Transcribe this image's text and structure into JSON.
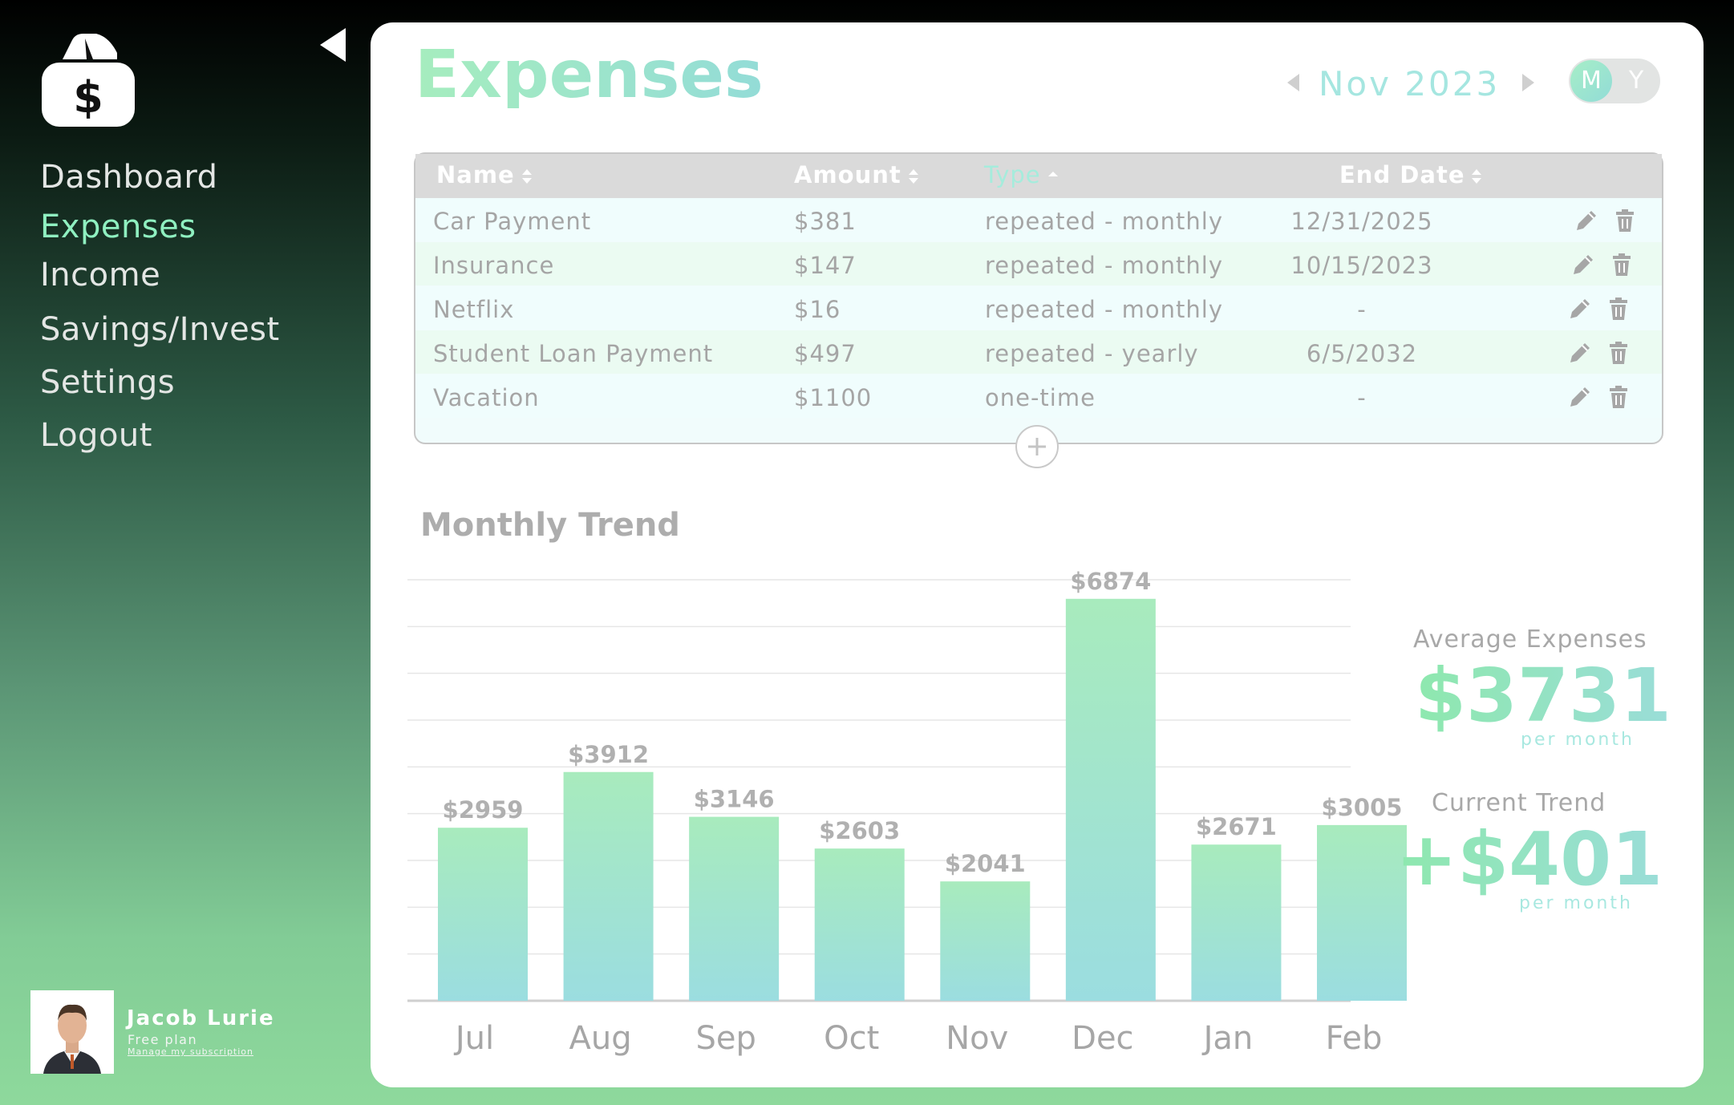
{
  "sidebar": {
    "nav": [
      {
        "label": "Dashboard",
        "active": false
      },
      {
        "label": "Expenses",
        "active": true
      },
      {
        "label": "Income",
        "active": false
      },
      {
        "label": "Savings/Invest",
        "active": false
      },
      {
        "label": "Settings",
        "active": false
      },
      {
        "label": "Logout",
        "active": false
      }
    ],
    "user": {
      "name": "Jacob Lurie",
      "plan": "Free plan",
      "manage_link": "Manage my subscription"
    }
  },
  "header": {
    "title": "Expenses",
    "period": "Nov 2023",
    "toggle": {
      "month": "M",
      "year": "Y",
      "selected": "M"
    }
  },
  "table": {
    "columns": [
      "Name",
      "Amount",
      "Type",
      "End Date"
    ],
    "sorted_column": "Type",
    "rows": [
      {
        "name": "Car Payment",
        "amount": "$381",
        "type": "repeated - monthly",
        "end_date": "12/31/2025"
      },
      {
        "name": "Insurance",
        "amount": "$147",
        "type": "repeated - monthly",
        "end_date": "10/15/2023"
      },
      {
        "name": "Netflix",
        "amount": "$16",
        "type": "repeated - monthly",
        "end_date": "-"
      },
      {
        "name": "Student Loan Payment",
        "amount": "$497",
        "type": "repeated - yearly",
        "end_date": "6/5/2032"
      },
      {
        "name": "Vacation",
        "amount": "$1100",
        "type": "one-time",
        "end_date": "-"
      }
    ]
  },
  "chart_data": {
    "type": "bar",
    "title": "Monthly Trend",
    "categories": [
      "Jul",
      "Aug",
      "Sep",
      "Oct",
      "Nov",
      "Dec",
      "Jan",
      "Feb"
    ],
    "values": [
      2959,
      3912,
      3146,
      2603,
      2041,
      6874,
      2671,
      3005
    ],
    "value_labels": [
      "$2959",
      "$3912",
      "$3146",
      "$2603",
      "$2041",
      "$6874",
      "$2671",
      "$3005"
    ],
    "ylim": [
      0,
      7200
    ],
    "grid": true,
    "colors": {
      "bar_top": "#a8ebbd",
      "bar_bottom": "#9bdde0"
    }
  },
  "stats": {
    "average_label": "Average Expenses",
    "average_value": "$3731",
    "average_unit": "per month",
    "trend_label": "Current Trend",
    "trend_value": "+$401",
    "trend_unit": "per month"
  },
  "colors": {
    "accent": "#8ff0c0",
    "accent_teal": "#93dcd7"
  },
  "icons": {
    "logo": "wallet-dollar-icon",
    "edit": "pencil-icon",
    "delete": "trash-icon",
    "add": "plus-icon"
  }
}
